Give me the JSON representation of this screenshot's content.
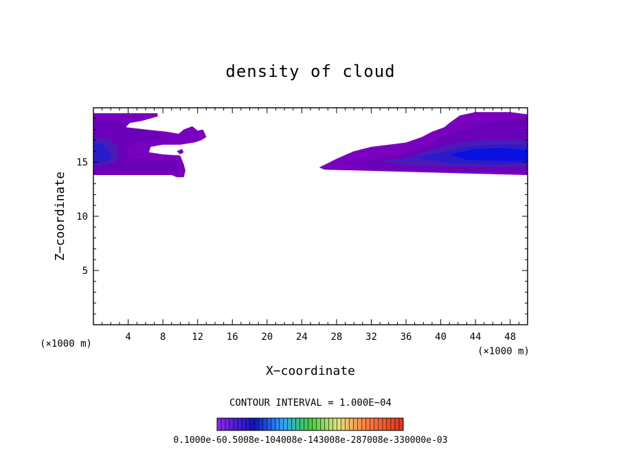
{
  "chart_data": {
    "type": "heatmap",
    "title": "density of cloud",
    "xlabel": "X−coordinate",
    "ylabel": "Z−coordinate",
    "x_unit": "(×1000 m)",
    "y_unit": "(×1000 m)",
    "xlim": [
      0,
      50
    ],
    "ylim": [
      0,
      20
    ],
    "x_ticks": [
      4,
      8,
      12,
      16,
      20,
      24,
      28,
      32,
      36,
      40,
      44,
      48
    ],
    "y_ticks": [
      5,
      10,
      15
    ],
    "contour_interval_text": "CONTOUR INTERVAL = 1.000E−04",
    "colorbar_labels_text": "0.1000e-60.5008e-104008e-143008e-287008e-330000e-03",
    "colors": {
      "level1": "#7a00c0",
      "level2": "#6a00b8",
      "level3": "#4a1ab8",
      "level4": "#2a1cc8",
      "level5": "#0a10e0"
    },
    "regions": [
      {
        "level": 1,
        "points": [
          [
            0,
            19.5
          ],
          [
            7.4,
            19.5
          ],
          [
            7.4,
            19.2
          ],
          [
            5.6,
            18.8
          ],
          [
            4.2,
            18.6
          ],
          [
            3.6,
            18.1
          ],
          [
            6,
            18
          ],
          [
            8.4,
            17.8
          ],
          [
            9.8,
            17.6
          ],
          [
            10.4,
            18
          ],
          [
            11.4,
            18.3
          ],
          [
            12,
            17.9
          ],
          [
            12.6,
            18
          ],
          [
            12.8,
            17.7
          ],
          [
            13,
            17.3
          ],
          [
            12.4,
            17
          ],
          [
            11.6,
            16.8
          ],
          [
            10,
            16.6
          ],
          [
            8,
            16.6
          ],
          [
            6.6,
            16.4
          ],
          [
            6.4,
            15.9
          ],
          [
            8,
            15.7
          ],
          [
            10,
            15.6
          ],
          [
            10.2,
            15.2
          ],
          [
            10.4,
            14.8
          ],
          [
            10.6,
            14.2
          ],
          [
            10.4,
            13.6
          ],
          [
            9.6,
            13.6
          ],
          [
            9,
            13.8
          ],
          [
            0,
            13.8
          ]
        ]
      },
      {
        "level": 1,
        "points": [
          [
            26,
            14.5
          ],
          [
            26.6,
            14.3
          ],
          [
            50,
            13.8
          ],
          [
            50,
            19.4
          ],
          [
            48,
            19.6
          ],
          [
            44,
            19.6
          ],
          [
            42.2,
            19.3
          ],
          [
            41,
            18.6
          ],
          [
            40.4,
            18.2
          ],
          [
            39,
            17.8
          ],
          [
            37.8,
            17.3
          ],
          [
            36,
            16.8
          ],
          [
            34,
            16.6
          ],
          [
            32,
            16.4
          ],
          [
            30,
            16
          ],
          [
            28,
            15.3
          ],
          [
            27,
            14.9
          ]
        ]
      },
      {
        "level": 1,
        "points": [
          [
            9.6,
            16
          ],
          [
            10.2,
            16.2
          ],
          [
            10.4,
            15.9
          ],
          [
            10,
            15.7
          ]
        ]
      },
      {
        "level": 2,
        "points": [
          [
            0,
            18.9
          ],
          [
            3,
            18.8
          ],
          [
            3.8,
            18.2
          ],
          [
            6,
            18
          ],
          [
            8,
            17.6
          ],
          [
            7.8,
            17.1
          ],
          [
            5,
            16.8
          ],
          [
            3.8,
            16.3
          ],
          [
            4.2,
            15.4
          ],
          [
            7,
            15.2
          ],
          [
            9.6,
            15.1
          ],
          [
            9.8,
            14.2
          ],
          [
            8,
            14.1
          ],
          [
            4,
            14.1
          ],
          [
            0,
            14.1
          ]
        ]
      },
      {
        "level": 2,
        "points": [
          [
            29,
            14.8
          ],
          [
            32,
            15.2
          ],
          [
            35,
            15.6
          ],
          [
            38,
            16.4
          ],
          [
            41,
            17.6
          ],
          [
            44,
            18.4
          ],
          [
            47,
            18.9
          ],
          [
            50,
            19
          ],
          [
            50,
            14.1
          ],
          [
            44,
            14.1
          ],
          [
            38,
            14.2
          ],
          [
            32,
            14.4
          ]
        ]
      },
      {
        "level": 3,
        "points": [
          [
            0,
            17.2
          ],
          [
            1.6,
            17.2
          ],
          [
            2.6,
            16.6
          ],
          [
            3,
            15.8
          ],
          [
            2.6,
            15
          ],
          [
            1.2,
            14.7
          ],
          [
            0,
            14.6
          ]
        ]
      },
      {
        "level": 3,
        "points": [
          [
            33,
            15.1
          ],
          [
            36,
            15.4
          ],
          [
            39,
            16.2
          ],
          [
            42,
            16.8
          ],
          [
            45,
            17.1
          ],
          [
            48,
            17.1
          ],
          [
            50,
            17
          ],
          [
            50,
            14.5
          ],
          [
            46,
            14.5
          ],
          [
            40,
            14.6
          ],
          [
            35,
            14.8
          ]
        ]
      },
      {
        "level": 4,
        "points": [
          [
            0,
            16.8
          ],
          [
            1,
            16.7
          ],
          [
            1.8,
            16.1
          ],
          [
            2.1,
            15.5
          ],
          [
            1.4,
            15
          ],
          [
            0,
            14.9
          ]
        ]
      },
      {
        "level": 4,
        "points": [
          [
            37,
            15.4
          ],
          [
            40,
            15.9
          ],
          [
            43,
            16.4
          ],
          [
            46,
            16.6
          ],
          [
            49,
            16.6
          ],
          [
            50,
            16.5
          ],
          [
            50,
            14.9
          ],
          [
            46,
            14.8
          ],
          [
            41,
            14.9
          ]
        ]
      },
      {
        "level": 5,
        "points": [
          [
            41,
            15.7
          ],
          [
            44,
            16.2
          ],
          [
            47,
            16.3
          ],
          [
            50,
            16.1
          ],
          [
            50,
            15.1
          ],
          [
            47,
            15.1
          ],
          [
            43,
            15.2
          ]
        ]
      }
    ]
  }
}
